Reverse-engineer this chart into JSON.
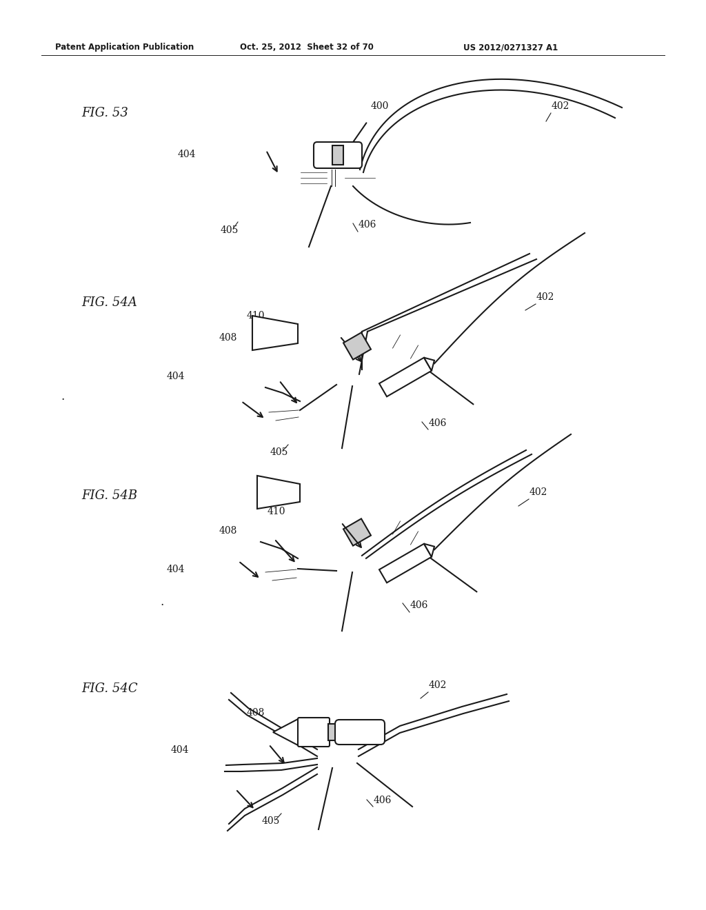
{
  "bg_color": "#ffffff",
  "line_color": "#1a1a1a",
  "header_left": "Patent Application Publication",
  "header_mid": "Oct. 25, 2012  Sheet 32 of 70",
  "header_right": "US 2012/0271327 A1",
  "fig53_label": "FIG. 53",
  "fig54a_label": "FIG. 54A",
  "fig54b_label": "FIG. 54B",
  "fig54c_label": "FIG. 54C",
  "lw": 1.5
}
